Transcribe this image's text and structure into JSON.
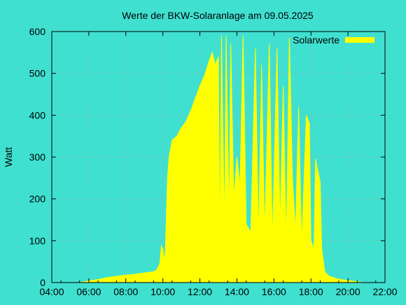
{
  "colors": {
    "background": "#40e0d0",
    "plot_area": "#40e0d0",
    "series": "#ffff00",
    "grid": "#a0a0a0",
    "axis": "#000000"
  },
  "chart_data": {
    "type": "area",
    "title": "Werte der BKW-Solaranlage am 09.05.2025",
    "xlabel": "",
    "ylabel": "Watt",
    "xlim": [
      "04:00",
      "22:00"
    ],
    "ylim": [
      0,
      600
    ],
    "x_ticks": [
      "04:00",
      "06:00",
      "08:00",
      "10:00",
      "12:00",
      "14:00",
      "16:00",
      "18:00",
      "20:00",
      "22:00"
    ],
    "y_ticks": [
      0,
      100,
      200,
      300,
      400,
      500,
      600
    ],
    "grid": true,
    "legend_position": "top-right",
    "series": [
      {
        "name": "Solarwerte",
        "points": [
          [
            "05:30",
            0
          ],
          [
            "05:45",
            2
          ],
          [
            "06:00",
            4
          ],
          [
            "06:30",
            7
          ],
          [
            "07:00",
            12
          ],
          [
            "07:30",
            15
          ],
          [
            "08:00",
            18
          ],
          [
            "08:30",
            20
          ],
          [
            "09:00",
            23
          ],
          [
            "09:30",
            26
          ],
          [
            "09:40",
            30
          ],
          [
            "09:50",
            45
          ],
          [
            "09:55",
            88
          ],
          [
            "10:00",
            80
          ],
          [
            "10:05",
            50
          ],
          [
            "10:08",
            75
          ],
          [
            "10:15",
            250
          ],
          [
            "10:20",
            300
          ],
          [
            "10:30",
            340
          ],
          [
            "10:45",
            350
          ],
          [
            "11:00",
            370
          ],
          [
            "11:15",
            385
          ],
          [
            "11:30",
            410
          ],
          [
            "11:45",
            440
          ],
          [
            "12:00",
            470
          ],
          [
            "12:15",
            495
          ],
          [
            "12:30",
            530
          ],
          [
            "12:40",
            550
          ],
          [
            "12:50",
            520
          ],
          [
            "13:00",
            540
          ],
          [
            "13:05",
            80
          ],
          [
            "13:10",
            590
          ],
          [
            "13:20",
            120
          ],
          [
            "13:25",
            590
          ],
          [
            "13:35",
            150
          ],
          [
            "13:40",
            570
          ],
          [
            "13:50",
            200
          ],
          [
            "14:00",
            300
          ],
          [
            "14:10",
            230
          ],
          [
            "14:20",
            590
          ],
          [
            "14:30",
            140
          ],
          [
            "14:45",
            120
          ],
          [
            "15:00",
            560
          ],
          [
            "15:10",
            100
          ],
          [
            "15:20",
            520
          ],
          [
            "15:30",
            110
          ],
          [
            "15:45",
            570
          ],
          [
            "15:55",
            90
          ],
          [
            "16:10",
            560
          ],
          [
            "16:20",
            130
          ],
          [
            "16:30",
            470
          ],
          [
            "16:40",
            90
          ],
          [
            "16:50",
            585
          ],
          [
            "17:00",
            250
          ],
          [
            "17:10",
            120
          ],
          [
            "17:20",
            420
          ],
          [
            "17:30",
            90
          ],
          [
            "17:45",
            400
          ],
          [
            "17:55",
            380
          ],
          [
            "18:00",
            100
          ],
          [
            "18:10",
            80
          ],
          [
            "18:15",
            295
          ],
          [
            "18:30",
            240
          ],
          [
            "18:35",
            80
          ],
          [
            "18:45",
            25
          ],
          [
            "19:00",
            15
          ],
          [
            "19:30",
            8
          ],
          [
            "20:00",
            5
          ],
          [
            "20:30",
            2
          ],
          [
            "20:50",
            0
          ]
        ]
      }
    ]
  }
}
